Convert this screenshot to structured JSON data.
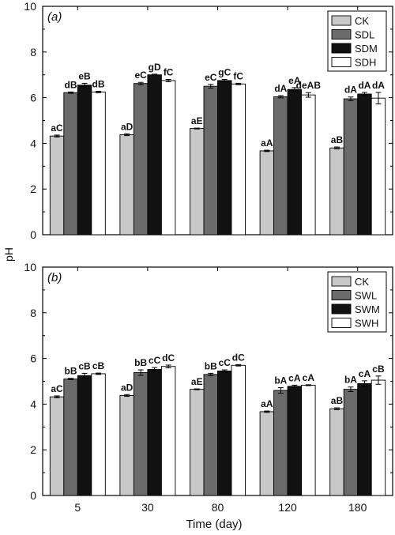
{
  "figure": {
    "ylabel": "pH",
    "xlabel": "Time (day)"
  },
  "chart_data": [
    {
      "type": "bar",
      "panel_label": "(a)",
      "categories": [
        "5",
        "30",
        "80",
        "120",
        "180"
      ],
      "ylim": [
        0,
        10
      ],
      "yticks": [
        "0",
        "2",
        "4",
        "6",
        "8",
        "10"
      ],
      "legend_position": "top-right",
      "series": [
        {
          "name": "CK",
          "color": "#c8c8c8",
          "values": [
            4.32,
            4.38,
            4.65,
            3.67,
            3.8
          ],
          "errors": [
            0.04,
            0.04,
            0.02,
            0.03,
            0.04
          ],
          "labels": [
            "aC",
            "aD",
            "aE",
            "aA",
            "aB"
          ]
        },
        {
          "name": "SDL",
          "color": "#6b6b6b",
          "values": [
            6.22,
            6.62,
            6.5,
            6.04,
            5.95
          ],
          "errors": [
            0.03,
            0.05,
            0.08,
            0.05,
            0.08
          ],
          "labels": [
            "dB",
            "eC",
            "eC",
            "dA",
            "dA"
          ]
        },
        {
          "name": "SDM",
          "color": "#111111",
          "values": [
            6.55,
            7.0,
            6.75,
            6.36,
            6.16
          ],
          "errors": [
            0.08,
            0.03,
            0.05,
            0.08,
            0.07
          ],
          "labels": [
            "eB",
            "gD",
            "gC",
            "eA",
            "dA"
          ]
        },
        {
          "name": "SDH",
          "color": "#ffffff",
          "values": [
            6.25,
            6.75,
            6.6,
            6.12,
            5.98
          ],
          "errors": [
            0.03,
            0.05,
            0.03,
            0.1,
            0.25
          ],
          "labels": [
            "dB",
            "fC",
            "fC",
            "deAB",
            "dA"
          ]
        }
      ]
    },
    {
      "type": "bar",
      "panel_label": "(b)",
      "categories": [
        "5",
        "30",
        "80",
        "120",
        "180"
      ],
      "ylim": [
        0,
        10
      ],
      "yticks": [
        "0",
        "2",
        "4",
        "6",
        "8",
        "10"
      ],
      "legend_position": "top-right",
      "series": [
        {
          "name": "CK",
          "color": "#c8c8c8",
          "values": [
            4.32,
            4.38,
            4.65,
            3.67,
            3.8
          ],
          "errors": [
            0.04,
            0.04,
            0.02,
            0.03,
            0.04
          ],
          "labels": [
            "aC",
            "aD",
            "aE",
            "aA",
            "aB"
          ]
        },
        {
          "name": "SWL",
          "color": "#6b6b6b",
          "values": [
            5.1,
            5.38,
            5.3,
            4.6,
            4.65
          ],
          "errors": [
            0.03,
            0.12,
            0.05,
            0.12,
            0.1
          ],
          "labels": [
            "bB",
            "bB",
            "bB",
            "bA",
            "bA"
          ]
        },
        {
          "name": "SWM",
          "color": "#111111",
          "values": [
            5.25,
            5.52,
            5.45,
            4.78,
            4.9
          ],
          "errors": [
            0.1,
            0.08,
            0.05,
            0.05,
            0.12
          ],
          "labels": [
            "cB",
            "cC",
            "cC",
            "cA",
            "cA"
          ]
        },
        {
          "name": "SWH",
          "color": "#ffffff",
          "values": [
            5.33,
            5.65,
            5.7,
            4.83,
            5.05
          ],
          "errors": [
            0.03,
            0.06,
            0.03,
            0.02,
            0.18
          ],
          "labels": [
            "cB",
            "dC",
            "dC",
            "cA",
            "cB"
          ]
        }
      ]
    }
  ]
}
